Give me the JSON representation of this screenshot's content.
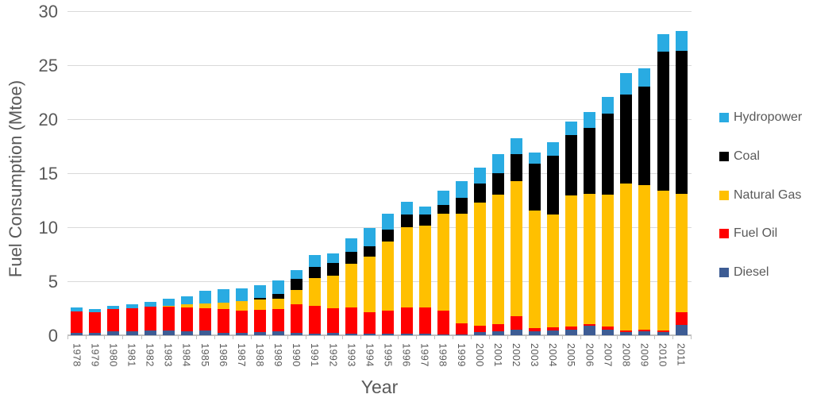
{
  "chart_data": {
    "type": "bar",
    "stacked": true,
    "title": "",
    "xlabel": "Year",
    "ylabel": "Fuel Consumption (Mtoe)",
    "ylim": [
      0,
      30
    ],
    "yticks": [
      0,
      5,
      10,
      15,
      20,
      25,
      30
    ],
    "grid": true,
    "legend_position": "right",
    "categories": [
      "1978",
      "1979",
      "1980",
      "1981",
      "1982",
      "1983",
      "1984",
      "1985",
      "1986",
      "1987",
      "1988",
      "1989",
      "1990",
      "1991",
      "1992",
      "1993",
      "1994",
      "1995",
      "1996",
      "1997",
      "1998",
      "1999",
      "2000",
      "2001",
      "2002",
      "2003",
      "2004",
      "2005",
      "2006",
      "2007",
      "2008",
      "2009",
      "2010",
      "2011"
    ],
    "series": [
      {
        "name": "Diesel",
        "color": "#3d5c94",
        "values": [
          0.25,
          0.25,
          0.35,
          0.35,
          0.45,
          0.45,
          0.4,
          0.45,
          0.25,
          0.25,
          0.3,
          0.35,
          0.2,
          0.15,
          0.2,
          0.15,
          0.15,
          0.15,
          0.15,
          0.15,
          0.1,
          0.1,
          0.3,
          0.35,
          0.55,
          0.4,
          0.45,
          0.5,
          0.85,
          0.55,
          0.3,
          0.35,
          0.3,
          0.95
        ]
      },
      {
        "name": "Fuel Oil",
        "color": "#ff0000",
        "values": [
          1.95,
          1.9,
          2.05,
          2.15,
          2.2,
          2.2,
          2.2,
          2.05,
          2.15,
          2.05,
          2.05,
          2.1,
          2.65,
          2.55,
          2.3,
          2.4,
          2.0,
          2.1,
          2.4,
          2.45,
          2.2,
          1.0,
          0.6,
          0.7,
          1.2,
          0.25,
          0.3,
          0.3,
          0.2,
          0.25,
          0.15,
          0.15,
          0.15,
          1.2
        ]
      },
      {
        "name": "Natural Gas",
        "color": "#ffc000",
        "values": [
          0,
          0,
          0,
          0,
          0,
          0.1,
          0.3,
          0.45,
          0.65,
          0.85,
          0.95,
          0.9,
          1.35,
          2.6,
          3.05,
          4.1,
          5.15,
          6.45,
          7.45,
          7.55,
          8.95,
          10.15,
          11.35,
          11.95,
          12.55,
          10.9,
          10.45,
          12.15,
          12.05,
          12.2,
          13.6,
          13.4,
          12.95,
          10.95
        ]
      },
      {
        "name": "Coal",
        "color": "#000000",
        "values": [
          0,
          0,
          0,
          0,
          0,
          0,
          0,
          0,
          0,
          0,
          0.15,
          0.5,
          1.0,
          1.05,
          1.15,
          1.05,
          0.95,
          1.1,
          1.2,
          1.05,
          0.8,
          1.45,
          1.8,
          2.0,
          2.5,
          4.3,
          5.4,
          5.55,
          6.1,
          7.55,
          8.25,
          9.15,
          12.85,
          13.2
        ]
      },
      {
        "name": "Hydropower",
        "color": "#29abe2",
        "values": [
          0.35,
          0.3,
          0.35,
          0.35,
          0.45,
          0.65,
          0.7,
          1.15,
          1.2,
          1.2,
          1.2,
          1.2,
          0.85,
          1.05,
          0.9,
          1.25,
          1.65,
          1.45,
          1.15,
          0.7,
          1.3,
          1.6,
          1.5,
          1.75,
          1.45,
          1.05,
          1.25,
          1.3,
          1.45,
          1.5,
          1.95,
          1.65,
          1.6,
          1.85
        ]
      }
    ],
    "legend": [
      {
        "label": "Hydropower",
        "color": "#29abe2"
      },
      {
        "label": "Coal",
        "color": "#000000"
      },
      {
        "label": "Natural Gas",
        "color": "#ffc000"
      },
      {
        "label": "Fuel Oil",
        "color": "#ff0000"
      },
      {
        "label": "Diesel",
        "color": "#3d5c94"
      }
    ]
  },
  "style_colors": {
    "grid_line": "#d9d9d9",
    "axis_line": "#bfbfbf",
    "tick_text": "#595959"
  }
}
